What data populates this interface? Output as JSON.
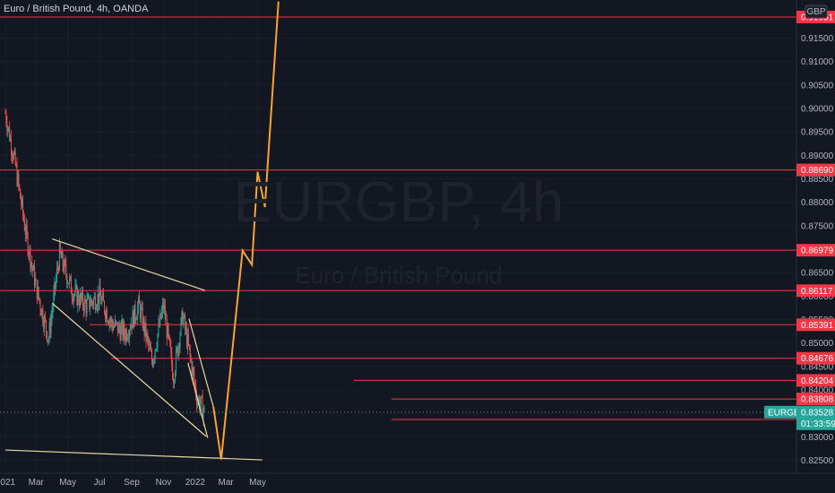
{
  "header": {
    "symbol_title": "Euro / British Pound, 4h, OANDA",
    "currency_badge": "GBP"
  },
  "watermark": {
    "ticker": "EURGBP, 4h",
    "name": "Euro / British Pound"
  },
  "colors": {
    "background": "#131722",
    "level_line": "#f23645",
    "trendline": "#e7d9a0",
    "projection": "#f7a531",
    "candle_up": "#26a69a",
    "candle_down": "#ef5350",
    "tag_red": "#f23645",
    "tag_green": "#26a69a"
  },
  "chart_data": {
    "type": "candlestick",
    "symbol": "EURGBP",
    "timeframe": "4h",
    "x_ticks": [
      "2021",
      "Mar",
      "May",
      "Jul",
      "Sep",
      "Nov",
      "2022",
      "Mar",
      "May"
    ],
    "y_ticks": [
      "0.91500",
      "0.91000",
      "0.90500",
      "0.90000",
      "0.89500",
      "0.89000",
      "0.88500",
      "0.88000",
      "0.87500",
      "0.87000",
      "0.86500",
      "0.86000",
      "0.85500",
      "0.85000",
      "0.84500",
      "0.84000",
      "0.83500",
      "0.83000",
      "0.82500"
    ],
    "ylim": [
      0.8235,
      0.9205
    ],
    "horizontal_levels": [
      "0.91951",
      "0.88690",
      "0.86979",
      "0.86117",
      "0.85391",
      "0.84676",
      "0.84204",
      "0.83808",
      "0.83371"
    ],
    "current_price": {
      "symbol": "EURGBP",
      "price": "0.83528",
      "countdown": "01:33:59"
    },
    "price_path": [
      [
        "2021-01-01",
        0.899
      ],
      [
        "2021-01-20",
        0.888
      ],
      [
        "2021-02-10",
        0.873
      ],
      [
        "2021-03-01",
        0.862
      ],
      [
        "2021-03-25",
        0.851
      ],
      [
        "2021-04-15",
        0.869
      ],
      [
        "2021-05-10",
        0.861
      ],
      [
        "2021-06-05",
        0.858
      ],
      [
        "2021-07-01",
        0.86
      ],
      [
        "2021-07-25",
        0.854
      ],
      [
        "2021-08-20",
        0.852
      ],
      [
        "2021-09-15",
        0.858
      ],
      [
        "2021-10-10",
        0.846
      ],
      [
        "2021-11-01",
        0.858
      ],
      [
        "2021-11-20",
        0.843
      ],
      [
        "2021-12-08",
        0.856
      ],
      [
        "2022-01-05",
        0.838
      ],
      [
        "2022-01-20",
        0.8353
      ]
    ],
    "trendlines": [
      {
        "from": [
          "2021-04-01",
          0.8722
        ],
        "to": [
          "2022-01-20",
          0.8612
        ]
      },
      {
        "from": [
          "2021-04-01",
          0.8585
        ],
        "to": [
          "2022-01-22",
          0.8301
        ]
      },
      {
        "from": [
          "2021-12-20",
          0.8552
        ],
        "to": [
          "2022-02-05",
          0.8364
        ]
      },
      {
        "from": [
          "2021-12-18",
          0.8458
        ],
        "to": [
          "2022-01-25",
          0.8298
        ]
      },
      {
        "from": [
          "2021-01-01",
          0.8272
        ],
        "to": [
          "2022-05-10",
          0.8251
        ]
      }
    ],
    "projection_path": [
      [
        "2022-02-05",
        0.8364
      ],
      [
        "2022-02-20",
        0.8252
      ],
      [
        "2022-04-02",
        0.8697
      ],
      [
        "2022-04-20",
        0.8667
      ],
      [
        "2022-05-01",
        0.8865
      ],
      [
        "2022-05-15",
        0.879
      ],
      [
        "2022-06-10",
        0.9228
      ]
    ]
  }
}
